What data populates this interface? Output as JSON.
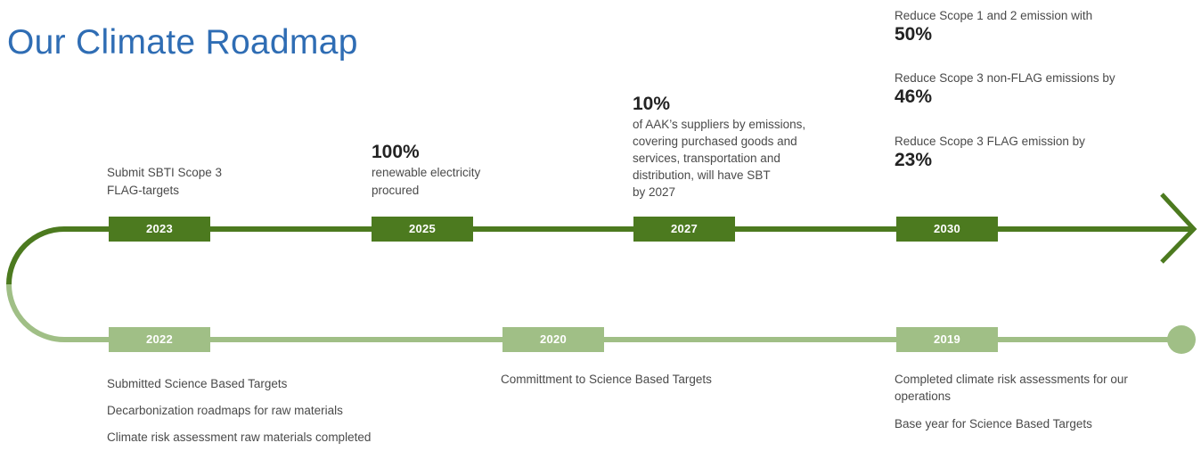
{
  "title": "Our Climate Roadmap",
  "colors": {
    "title": "#2f6db4",
    "top_line": "#4c7a1f",
    "bottom_line": "#a0bf86"
  },
  "top_milestones": [
    {
      "year": "2023",
      "lines": [
        "Submit SBTI Scope 3",
        "FLAG-targets"
      ]
    },
    {
      "year": "2025",
      "highlight": "100%",
      "lines": [
        "renewable electricity",
        "procured"
      ]
    },
    {
      "year": "2027",
      "highlight": "10%",
      "lines": [
        "of AAK’s suppliers by emissions,",
        "covering purchased goods and",
        "services, transportation and",
        "distribution, will have SBT",
        "by 2027"
      ]
    },
    {
      "year": "2030",
      "targets": [
        {
          "text": "Reduce Scope 1 and 2 emission with",
          "value": "50%"
        },
        {
          "text": "Reduce Scope 3 non-FLAG emissions by",
          "value": "46%"
        },
        {
          "text": "Reduce Scope 3 FLAG emission by",
          "value": "23%"
        }
      ]
    }
  ],
  "bottom_milestones": [
    {
      "year": "2022",
      "items": [
        "Submitted Science Based Targets",
        "Decarbonization roadmaps for raw materials",
        "Climate risk assessment raw materials completed"
      ]
    },
    {
      "year": "2020",
      "items": [
        "Committment to Science Based Targets"
      ]
    },
    {
      "year": "2019",
      "items": [
        "Completed climate risk assessments for our operations",
        "Base year for Science Based Targets"
      ]
    }
  ]
}
